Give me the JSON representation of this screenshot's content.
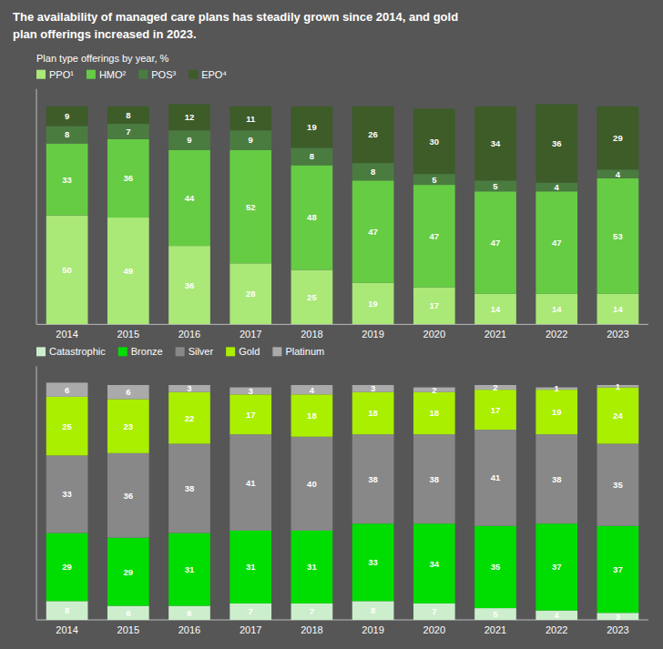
{
  "chart_data": [
    {
      "type": "bar",
      "title": "The availability of managed care plans has steadily grown since 2014, and gold\nplan offerings increased in 2023.",
      "subtitle": "Plan type offerings by year, %",
      "categories": [
        "2014",
        "2015",
        "2016",
        "2017",
        "2018",
        "2019",
        "2020",
        "2021",
        "2022",
        "2023"
      ],
      "series": [
        {
          "name": "PPO¹",
          "color": "#aae878",
          "values": [
            50,
            49,
            36,
            28,
            25,
            19,
            17,
            14,
            14,
            14
          ]
        },
        {
          "name": "HMO²",
          "color": "#66cc44",
          "values": [
            33,
            36,
            44,
            52,
            48,
            47,
            47,
            47,
            47,
            53
          ]
        },
        {
          "name": "POS³",
          "color": "#4a7c40",
          "values": [
            8,
            7,
            9,
            9,
            8,
            8,
            5,
            5,
            4,
            4
          ]
        },
        {
          "name": "EPO⁴",
          "color": "#3d5c28",
          "values": [
            9,
            8,
            12,
            11,
            19,
            26,
            30,
            34,
            36,
            29
          ]
        }
      ],
      "ylim": [
        0,
        108
      ],
      "stacked": true,
      "data_labels": true,
      "tick_labels": "x",
      "grid": false,
      "legend": "upper left"
    },
    {
      "type": "bar",
      "categories": [
        "2014",
        "2015",
        "2016",
        "2017",
        "2018",
        "2019",
        "2020",
        "2021",
        "2022",
        "2023"
      ],
      "series": [
        {
          "name": "Catastrophic",
          "color": "#cceecc",
          "values": [
            8,
            6,
            6,
            7,
            7,
            8,
            7,
            5,
            4,
            3
          ]
        },
        {
          "name": "Bronze",
          "color": "#00dd00",
          "values": [
            29,
            29,
            31,
            31,
            31,
            33,
            34,
            35,
            37,
            37
          ]
        },
        {
          "name": "Silver",
          "color": "#888888",
          "values": [
            33,
            36,
            38,
            41,
            40,
            38,
            38,
            41,
            38,
            35
          ]
        },
        {
          "name": "Gold",
          "color": "#aaee00",
          "values": [
            25,
            23,
            22,
            17,
            18,
            18,
            18,
            17,
            19,
            24
          ]
        },
        {
          "name": "Platinum",
          "color": "#aaaaaa",
          "values": [
            6,
            6,
            3,
            3,
            4,
            3,
            2,
            2,
            1,
            1
          ]
        }
      ],
      "ylim": [
        0,
        108
      ],
      "stacked": true,
      "data_labels": true,
      "tick_labels": "x",
      "grid": false,
      "legend": "upper left"
    }
  ]
}
